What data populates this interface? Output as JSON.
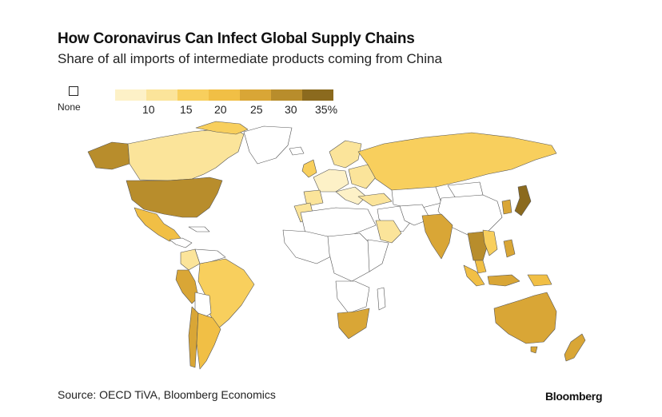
{
  "title": "How Coronavirus Can Infect Global Supply Chains",
  "subtitle": "Share of all imports of intermediate products coming from China",
  "legend": {
    "none_label": "None",
    "colors": [
      "#fdf1c7",
      "#fbe49a",
      "#f8cf5d",
      "#f1bf45",
      "#d9a636",
      "#b88d2c",
      "#8b6a1e"
    ],
    "ticks": [
      "10",
      "15",
      "20",
      "25",
      "30",
      "35%"
    ]
  },
  "source": "Source: OECD TiVA, Bloomberg Economics",
  "brand": "Bloomberg"
}
